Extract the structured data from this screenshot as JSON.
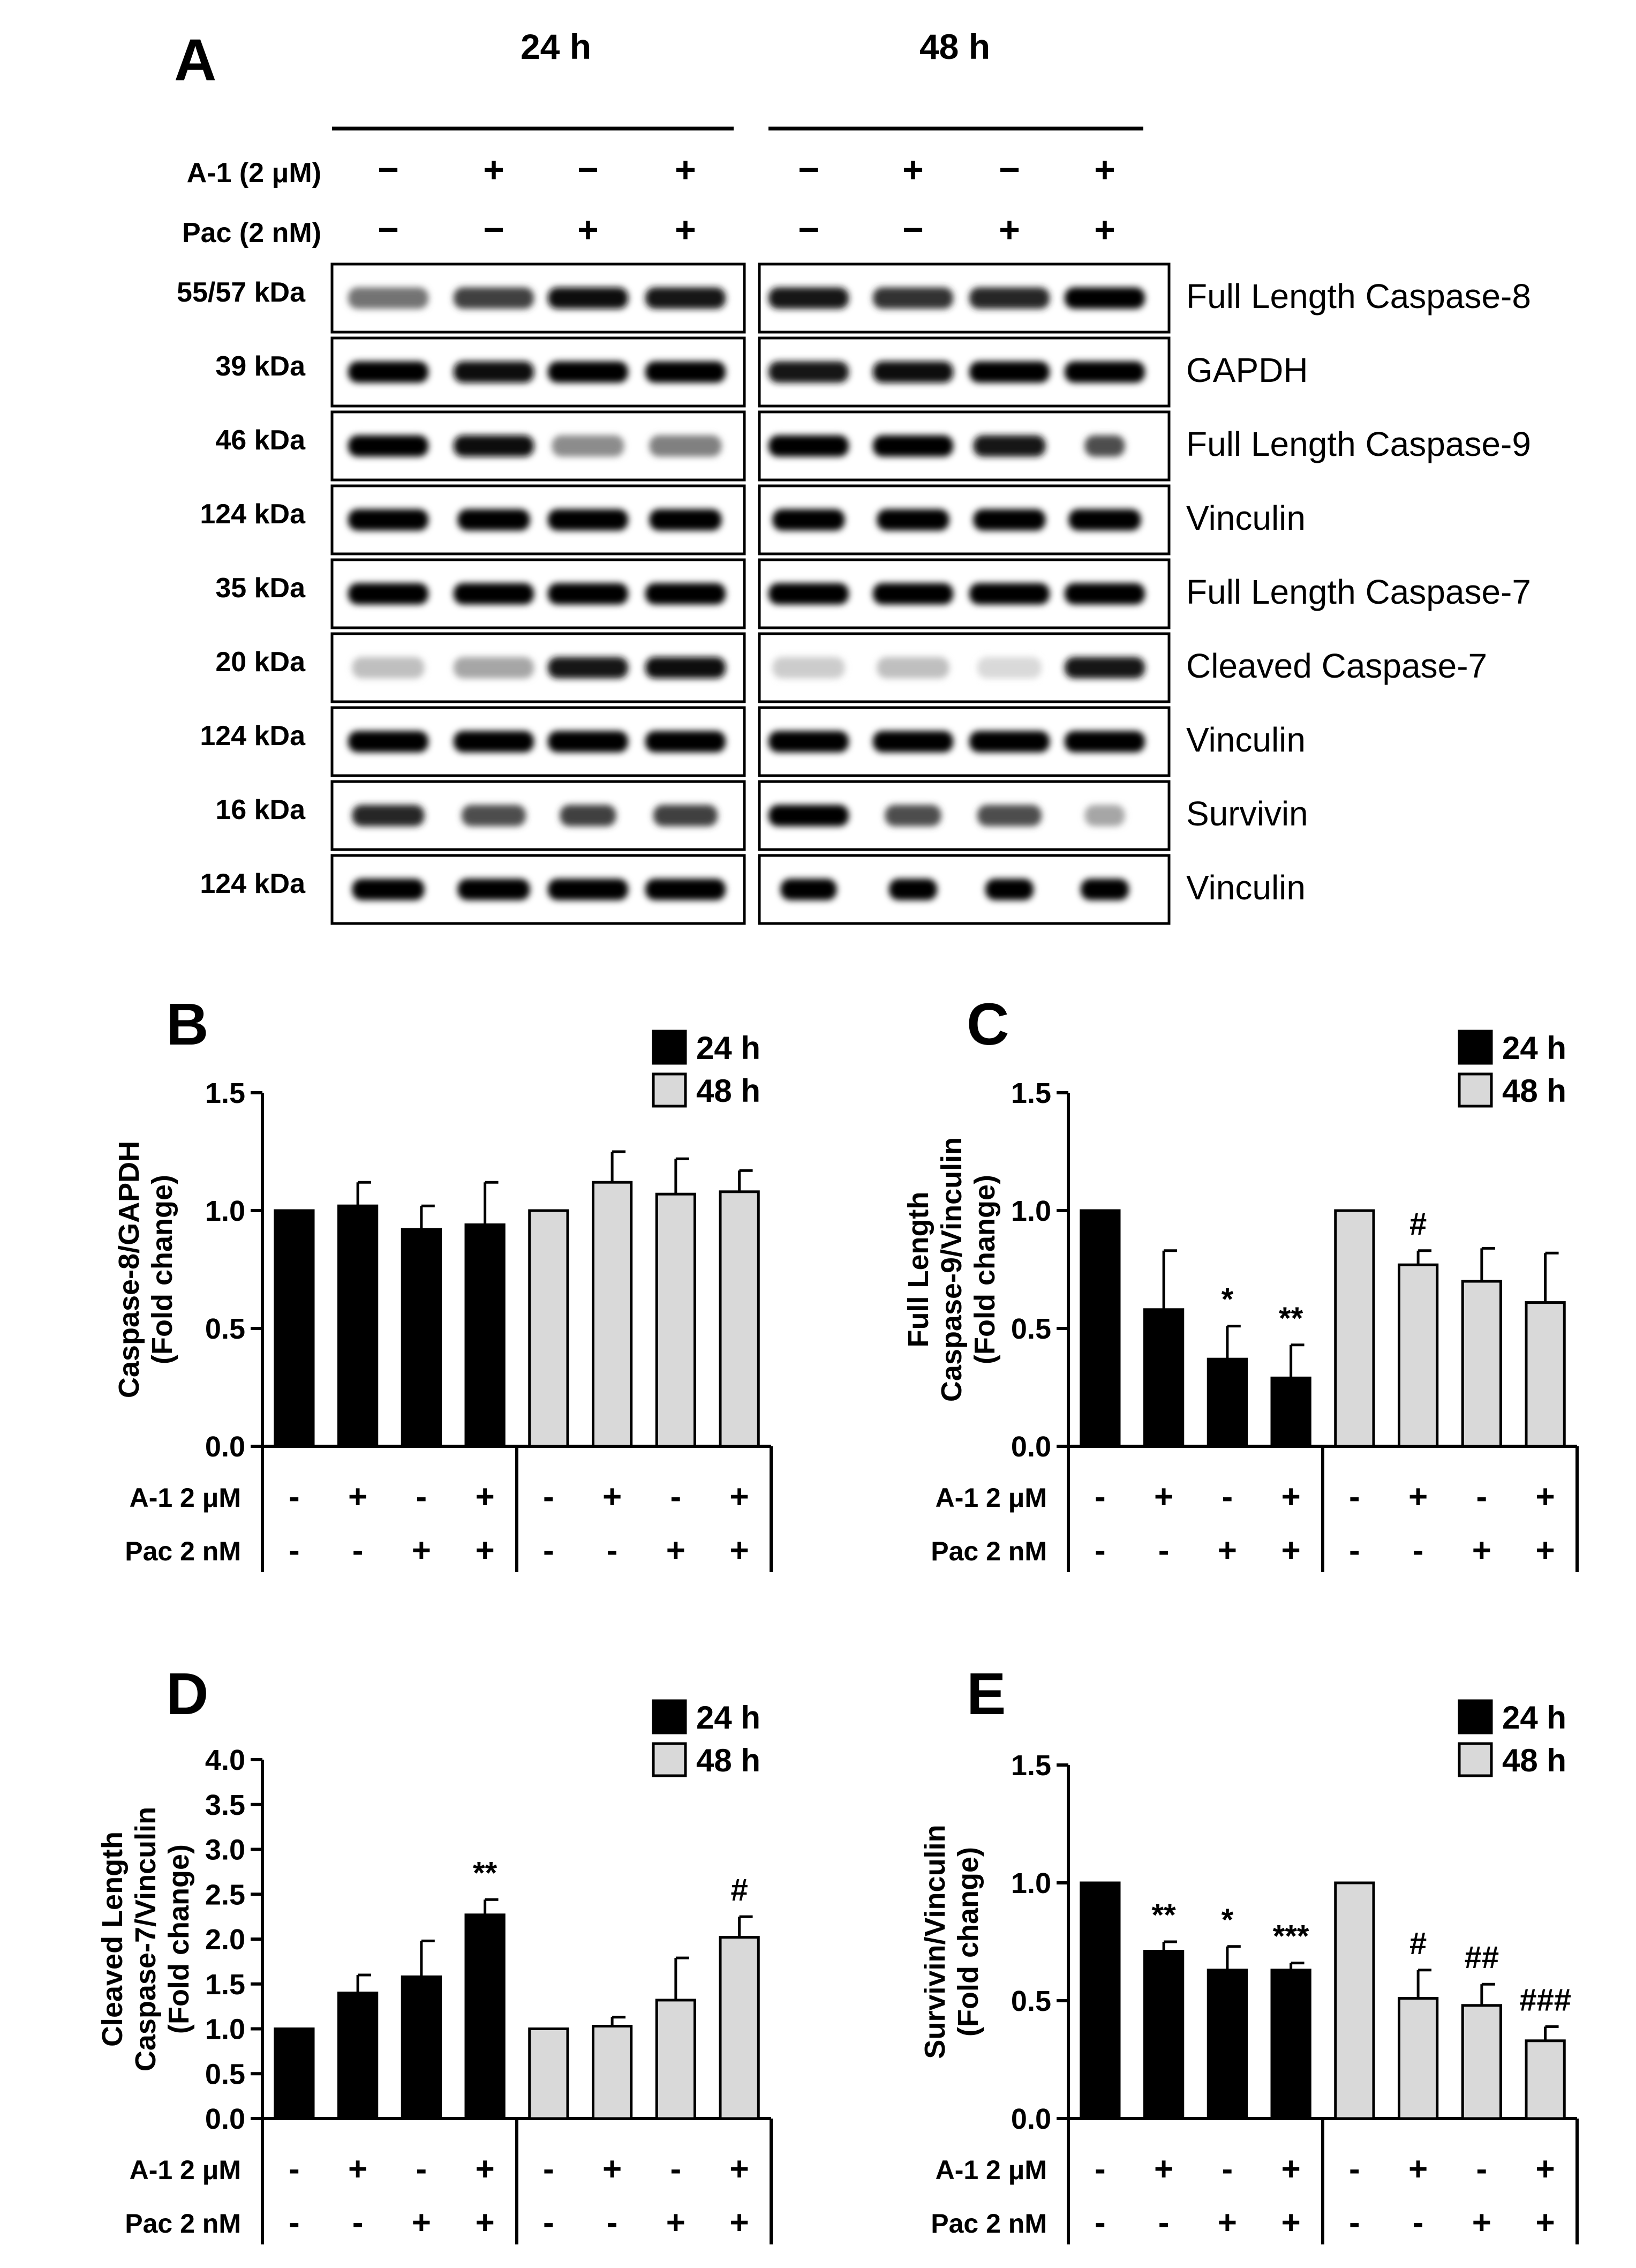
{
  "panelA": {
    "letter": "A",
    "time_labels": [
      "24 h",
      "48 h"
    ],
    "row_labels": [
      "A-1 (2 μM)",
      "Pac (2 nM)"
    ],
    "a1_signs": [
      "−",
      "+",
      "−",
      "+",
      "−",
      "+",
      "−",
      "+"
    ],
    "pac_signs": [
      "−",
      "−",
      "+",
      "+",
      "−",
      "−",
      "+",
      "+"
    ],
    "blots": [
      {
        "kda": "55/57 kDa",
        "protein": "Full Length Caspase-8"
      },
      {
        "kda": "39 kDa",
        "protein": "GAPDH"
      },
      {
        "kda": "46 kDa",
        "protein": "Full Length Caspase-9"
      },
      {
        "kda": "124 kDa",
        "protein": "Vinculin"
      },
      {
        "kda": "35 kDa",
        "protein": "Full Length Caspase-7"
      },
      {
        "kda": "20 kDa",
        "protein": "Cleaved Caspase-7"
      },
      {
        "kda": "124 kDa",
        "protein": "Vinculin"
      },
      {
        "kda": "16 kDa",
        "protein": "Survivin"
      },
      {
        "kda": "124 kDa",
        "protein": "Vinculin"
      }
    ]
  },
  "colors": {
    "24h": "#000000",
    "48h": "#d9d9d9"
  },
  "chart_data": [
    {
      "panel": "B",
      "type": "bar",
      "ylabel": [
        "Caspase-8/GAPDH",
        "(Fold change)"
      ],
      "ylim": [
        0,
        1.5
      ],
      "yticks": [
        "0.0",
        "0.5",
        "1.0",
        "1.5"
      ],
      "legend": [
        "24 h",
        "48 h"
      ],
      "row_labels": [
        "A-1 2 μM",
        "Pac 2 nM"
      ],
      "a1_signs": [
        "-",
        "+",
        "-",
        "+",
        "-",
        "+",
        "-",
        "+"
      ],
      "pac_signs": [
        "-",
        "-",
        "+",
        "+",
        "-",
        "-",
        "+",
        "+"
      ],
      "series": [
        {
          "name": "24 h",
          "values": [
            1.0,
            1.02,
            0.92,
            0.94
          ],
          "errors": [
            0,
            0.1,
            0.1,
            0.18
          ],
          "annotations": [
            "",
            "",
            "",
            ""
          ]
        },
        {
          "name": "48 h",
          "values": [
            1.0,
            1.12,
            1.07,
            1.08
          ],
          "errors": [
            0,
            0.13,
            0.15,
            0.09
          ],
          "annotations": [
            "",
            "",
            "",
            ""
          ]
        }
      ]
    },
    {
      "panel": "C",
      "type": "bar",
      "ylabel": [
        "Full Length",
        "Caspase-9/Vinculin",
        "(Fold change)"
      ],
      "ylim": [
        0,
        1.5
      ],
      "yticks": [
        "0.0",
        "0.5",
        "1.0",
        "1.5"
      ],
      "legend": [
        "24 h",
        "48 h"
      ],
      "row_labels": [
        "A-1 2 μM",
        "Pac 2 nM"
      ],
      "a1_signs": [
        "-",
        "+",
        "-",
        "+",
        "-",
        "+",
        "-",
        "+"
      ],
      "pac_signs": [
        "-",
        "-",
        "+",
        "+",
        "-",
        "-",
        "+",
        "+"
      ],
      "series": [
        {
          "name": "24 h",
          "values": [
            1.0,
            0.58,
            0.37,
            0.29
          ],
          "errors": [
            0,
            0.25,
            0.14,
            0.14
          ],
          "annotations": [
            "",
            "",
            "*",
            "**"
          ]
        },
        {
          "name": "48 h",
          "values": [
            1.0,
            0.77,
            0.7,
            0.61
          ],
          "errors": [
            0,
            0.06,
            0.14,
            0.21
          ],
          "annotations": [
            "",
            "#",
            "",
            ""
          ]
        }
      ]
    },
    {
      "panel": "D",
      "type": "bar",
      "ylabel": [
        "Cleaved Length",
        "Caspase-7/Vinculin",
        "(Fold change)"
      ],
      "ylim": [
        0,
        4.0
      ],
      "yticks": [
        "0.0",
        "0.5",
        "1.0",
        "1.5",
        "2.0",
        "2.5",
        "3.0",
        "3.5",
        "4.0"
      ],
      "legend": [
        "24 h",
        "48 h"
      ],
      "row_labels": [
        "A-1 2 μM",
        "Pac 2 nM"
      ],
      "a1_signs": [
        "-",
        "+",
        "-",
        "+",
        "-",
        "+",
        "-",
        "+"
      ],
      "pac_signs": [
        "-",
        "-",
        "+",
        "+",
        "-",
        "-",
        "+",
        "+"
      ],
      "series": [
        {
          "name": "24 h",
          "values": [
            1.0,
            1.4,
            1.58,
            2.27
          ],
          "errors": [
            0,
            0.2,
            0.4,
            0.17
          ],
          "annotations": [
            "",
            "",
            "",
            "**"
          ]
        },
        {
          "name": "48 h",
          "values": [
            1.0,
            1.03,
            1.32,
            2.02
          ],
          "errors": [
            0,
            0.1,
            0.47,
            0.23
          ],
          "annotations": [
            "",
            "",
            "",
            "#"
          ]
        }
      ]
    },
    {
      "panel": "E",
      "type": "bar",
      "ylabel": [
        "Survivin/Vinculin",
        "(Fold change)"
      ],
      "ylim": [
        0,
        1.5
      ],
      "yticks": [
        "0.0",
        "0.5",
        "1.0",
        "1.5"
      ],
      "legend": [
        "24 h",
        "48 h"
      ],
      "row_labels": [
        "A-1 2 μM",
        "Pac 2 nM"
      ],
      "a1_signs": [
        "-",
        "+",
        "-",
        "+",
        "-",
        "+",
        "-",
        "+"
      ],
      "pac_signs": [
        "-",
        "-",
        "+",
        "+",
        "-",
        "-",
        "+",
        "+"
      ],
      "series": [
        {
          "name": "24 h",
          "values": [
            1.0,
            0.71,
            0.63,
            0.63
          ],
          "errors": [
            0,
            0.04,
            0.1,
            0.03
          ],
          "annotations": [
            "",
            "**",
            "*",
            "***"
          ]
        },
        {
          "name": "48 h",
          "values": [
            1.0,
            0.51,
            0.48,
            0.33
          ],
          "errors": [
            0,
            0.12,
            0.09,
            0.06
          ],
          "annotations": [
            "",
            "#",
            "##",
            "###"
          ]
        }
      ]
    }
  ]
}
